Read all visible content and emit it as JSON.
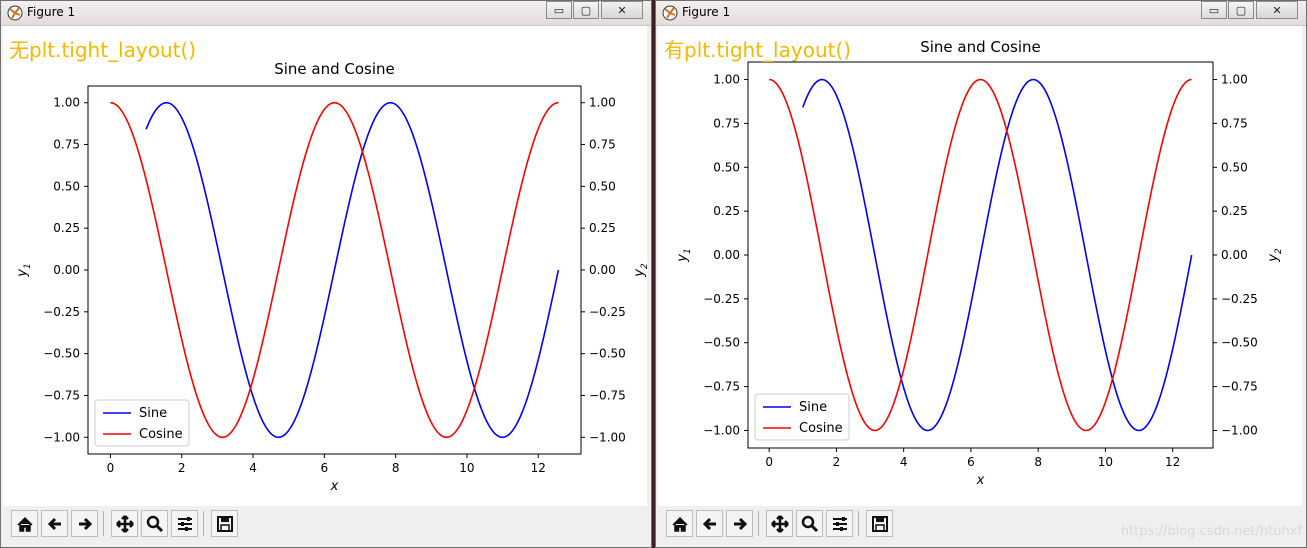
{
  "windows": [
    {
      "title": "Figure 1",
      "label": "无plt.tight_layout()",
      "minimize": "▭",
      "maximize": "▢",
      "close": "✕",
      "chart_data": {
        "type": "line",
        "title": "Sine and Cosine",
        "xlabel": "x",
        "ylabel_left": "y1",
        "ylabel_right": "y2",
        "xlim": [
          -0.63,
          13.2
        ],
        "ylim": [
          -1.1,
          1.1
        ],
        "xticks": [
          "0",
          "2",
          "4",
          "6",
          "8",
          "10",
          "12"
        ],
        "yticks": [
          "1.00",
          "0.75",
          "0.50",
          "0.25",
          "0.00",
          "−0.25",
          "−0.50",
          "−0.75",
          "−1.00"
        ],
        "legend_position": "lower-left",
        "series": [
          {
            "name": "Sine",
            "color": "#0000ff",
            "function": "sin",
            "x_range": [
              1.0,
              12.566
            ]
          },
          {
            "name": "Cosine",
            "color": "#ff0000",
            "function": "cos",
            "x_range": [
              0.0,
              12.566
            ]
          }
        ]
      }
    },
    {
      "title": "Figure 1",
      "label": "有plt.tight_layout()",
      "minimize": "▭",
      "maximize": "▢",
      "close": "✕",
      "chart_data": {
        "type": "line",
        "title": "Sine and Cosine",
        "xlabel": "x",
        "ylabel_left": "y1",
        "ylabel_right": "y2",
        "xlim": [
          -0.63,
          13.2
        ],
        "ylim": [
          -1.1,
          1.1
        ],
        "xticks": [
          "0",
          "2",
          "4",
          "6",
          "8",
          "10",
          "12"
        ],
        "yticks": [
          "1.00",
          "0.75",
          "0.50",
          "0.25",
          "0.00",
          "−0.25",
          "−0.50",
          "−0.75",
          "−1.00"
        ],
        "legend_position": "lower-left",
        "series": [
          {
            "name": "Sine",
            "color": "#0000ff",
            "function": "sin",
            "x_range": [
              1.0,
              12.566
            ]
          },
          {
            "name": "Cosine",
            "color": "#ff0000",
            "function": "cos",
            "x_range": [
              0.0,
              12.566
            ]
          }
        ]
      }
    }
  ],
  "toolbar_icons": [
    "home-icon",
    "back-arrow-icon",
    "forward-arrow-icon",
    "pan-icon",
    "zoom-icon",
    "subplots-config-icon",
    "save-icon"
  ],
  "watermark": "https://blog.csdn.net/htuhxf"
}
